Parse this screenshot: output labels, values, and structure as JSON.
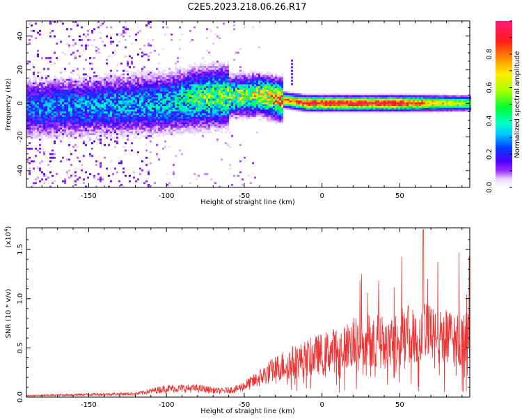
{
  "figure_title": "C2E5.2023.218.06.26.R17",
  "chart_data": [
    {
      "type": "heatmap",
      "xlabel": "Height of straight line (km)",
      "ylabel": "Frequency (Hz)",
      "xlim": [
        -190,
        95
      ],
      "ylim": [
        -50,
        49
      ],
      "x_ticks": [
        "-150",
        "-100",
        "-50",
        "0",
        "50"
      ],
      "y_ticks": [
        "40",
        "20",
        "0",
        "-20",
        "-40"
      ],
      "colorbar": {
        "label": "Normalized spectral amplitude",
        "range": [
          0.0,
          1.0
        ],
        "ticks": [
          "0.0",
          "0.2",
          "0.4",
          "0.6",
          "0.8"
        ]
      },
      "band_profile": {
        "x": [
          -190,
          -150,
          -100,
          -80,
          -60,
          -40,
          -30,
          -25,
          -10,
          0,
          50,
          95
        ],
        "center_frequency": [
          -3,
          -2,
          0,
          3,
          4,
          5,
          3,
          2,
          0,
          0,
          0,
          0
        ],
        "peak_amplitude": [
          0.25,
          0.28,
          0.32,
          0.45,
          0.5,
          0.6,
          0.7,
          0.8,
          0.9,
          0.95,
          0.95,
          0.55
        ]
      }
    },
    {
      "type": "line",
      "xlabel": "Height of straight line (km)",
      "ylabel": "SNR (10 * v/v)",
      "y_scale_note": "(x10",
      "y_scale_exp": "4",
      "xlim": [
        -190,
        95
      ],
      "ylim": [
        0,
        1.72
      ],
      "x_ticks": [
        "-150",
        "-100",
        "-50",
        "0",
        "50"
      ],
      "y_ticks": [
        "0.0",
        "0.5",
        "1.0",
        "1.5"
      ],
      "color": "#ee3333",
      "envelope": {
        "x": [
          -190,
          -150,
          -120,
          -110,
          -100,
          -80,
          -65,
          -55,
          -45,
          -35,
          -25,
          -15,
          -5,
          10,
          25,
          40,
          55,
          65,
          75,
          95
        ],
        "y": [
          0.02,
          0.04,
          0.05,
          0.09,
          0.13,
          0.13,
          0.09,
          0.12,
          0.22,
          0.36,
          0.48,
          0.55,
          0.62,
          0.72,
          0.85,
          0.88,
          0.93,
          0.98,
          0.9,
          0.85
        ]
      }
    }
  ]
}
